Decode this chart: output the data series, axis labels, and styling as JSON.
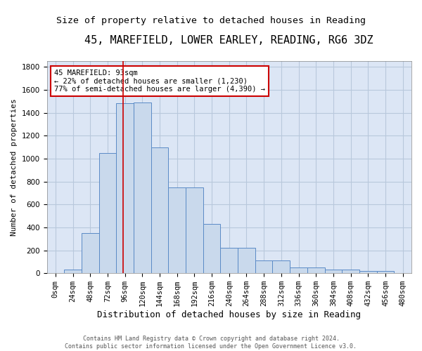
{
  "title1": "45, MAREFIELD, LOWER EARLEY, READING, RG6 3DZ",
  "title2": "Size of property relative to detached houses in Reading",
  "xlabel": "Distribution of detached houses by size in Reading",
  "ylabel": "Number of detached properties",
  "bar_values": [
    0,
    30,
    350,
    1050,
    1480,
    1490,
    1100,
    750,
    750,
    430,
    220,
    220,
    110,
    110,
    50,
    50,
    35,
    35,
    20,
    20,
    0
  ],
  "bar_labels": [
    "0sqm",
    "24sqm",
    "48sqm",
    "72sqm",
    "96sqm",
    "120sqm",
    "144sqm",
    "168sqm",
    "192sqm",
    "216sqm",
    "240sqm",
    "264sqm",
    "288sqm",
    "312sqm",
    "336sqm",
    "360sqm",
    "384sqm",
    "408sqm",
    "432sqm",
    "456sqm",
    "480sqm"
  ],
  "bar_color": "#c9d9ec",
  "bar_edge_color": "#5a8ac6",
  "bar_width": 1.0,
  "ylim": [
    0,
    1850
  ],
  "yticks": [
    0,
    200,
    400,
    600,
    800,
    1000,
    1200,
    1400,
    1600,
    1800
  ],
  "property_line_x": 3.875,
  "property_line_color": "#cc0000",
  "annotation_box_text": "45 MAREFIELD: 93sqm\n← 22% of detached houses are smaller (1,230)\n77% of semi-detached houses are larger (4,390) →",
  "annotation_box_color": "#cc0000",
  "footer_text": "Contains HM Land Registry data © Crown copyright and database right 2024.\nContains public sector information licensed under the Open Government Licence v3.0.",
  "bg_color": "#ffffff",
  "plot_bg_color": "#dce6f5",
  "grid_color": "#b8c8dc",
  "title1_fontsize": 11,
  "title2_fontsize": 9.5,
  "xlabel_fontsize": 9,
  "ylabel_fontsize": 8,
  "tick_fontsize": 7.5,
  "annotation_fontsize": 7.5,
  "footer_fontsize": 6
}
